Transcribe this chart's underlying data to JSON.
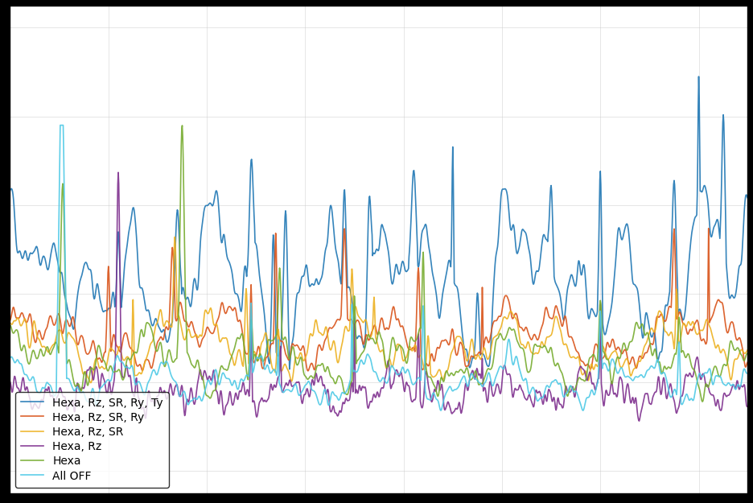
{
  "title": "",
  "xlabel": "",
  "ylabel": "",
  "background_color": "#000000",
  "plot_bg_color": "#ffffff",
  "grid_color": "#cccccc",
  "legend_labels": [
    "Hexa, Rz, SR, Ry, Ty",
    "Hexa, Rz, SR, Ry",
    "Hexa, Rz, SR",
    "Hexa, Rz",
    "Hexa",
    "All OFF"
  ],
  "line_colors": [
    "#1f77b4",
    "#d95319",
    "#edb120",
    "#7e2f8e",
    "#77ac30",
    "#4dc9e6"
  ],
  "line_widths": [
    1.2,
    1.2,
    1.2,
    1.2,
    1.2,
    1.2
  ],
  "figsize": [
    9.36,
    6.25
  ],
  "dpi": 100,
  "n_points": 1500,
  "seed": 42,
  "ylim": [
    -0.05,
    1.05
  ],
  "xlim": [
    0,
    1499
  ]
}
